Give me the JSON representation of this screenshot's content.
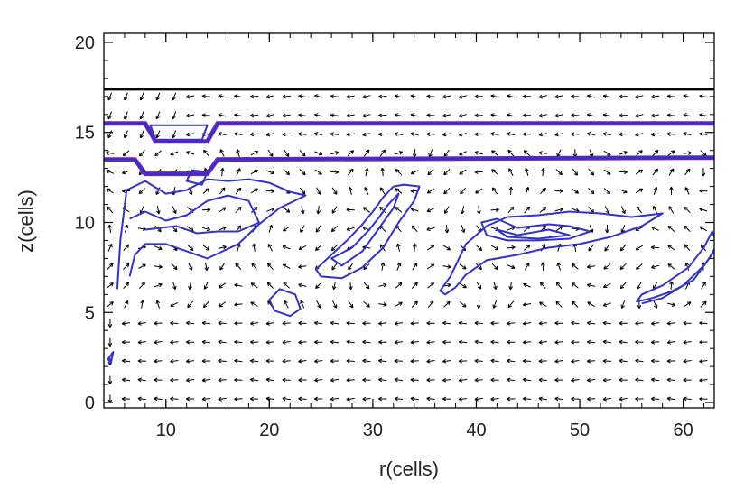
{
  "chart_data": {
    "type": "vector-field-contour",
    "xlabel": "r(cells)",
    "ylabel": "z(cells)",
    "xlim": [
      4,
      63
    ],
    "ylim": [
      -0.3,
      20.5
    ],
    "x_ticks": [
      10,
      20,
      30,
      40,
      50,
      60
    ],
    "y_ticks": [
      0,
      5,
      10,
      15,
      20
    ],
    "colors": {
      "frame": "#000000",
      "arrows": "#000000",
      "contours": "#3333cc",
      "contour_inner": "#7722aa",
      "surface_line": "#000000"
    },
    "surface_line": {
      "y": 17.4
    },
    "layer_lines": [
      {
        "y": [
          15.5,
          15.5,
          14.5,
          14.5,
          15.5,
          15.5
        ],
        "x": [
          4,
          8,
          9,
          14,
          15,
          63
        ]
      },
      {
        "y": [
          13.5,
          13.5,
          12.7,
          12.7,
          13.5,
          13.6
        ],
        "x": [
          4,
          7,
          8,
          14,
          15,
          63
        ]
      }
    ],
    "contours": [
      {
        "closed": false,
        "points": [
          [
            5.3,
            6.3
          ],
          [
            5.6,
            9
          ],
          [
            6.2,
            11.8
          ],
          [
            8,
            12.3
          ],
          [
            10,
            11.6
          ],
          [
            12,
            11.8
          ],
          [
            14,
            12.4
          ],
          [
            16,
            12.3
          ],
          [
            18,
            12.4
          ],
          [
            20,
            12.2
          ],
          [
            22,
            11.7
          ],
          [
            23.5,
            11.5
          ],
          [
            21,
            10.8
          ],
          [
            19,
            9.9
          ],
          [
            17,
            8.8
          ],
          [
            14,
            8.0
          ],
          [
            12,
            8.4
          ],
          [
            10,
            8.8
          ],
          [
            8,
            8.8
          ],
          [
            7,
            8.2
          ],
          [
            6.5,
            7.0
          ]
        ]
      },
      {
        "closed": false,
        "points": [
          [
            6.5,
            10.2
          ],
          [
            8,
            10.6
          ],
          [
            10,
            10.1
          ],
          [
            12,
            10.4
          ],
          [
            14,
            11.2
          ],
          [
            16,
            11.5
          ],
          [
            18,
            11.2
          ],
          [
            19,
            10.0
          ],
          [
            17,
            9.5
          ],
          [
            15,
            9.5
          ],
          [
            13,
            9.4
          ],
          [
            11,
            9.8
          ],
          [
            8,
            9.6
          ]
        ]
      },
      {
        "closed": true,
        "points": [
          [
            20,
            5.7
          ],
          [
            21,
            6.3
          ],
          [
            22.5,
            6.0
          ],
          [
            23,
            5.2
          ],
          [
            22,
            4.8
          ],
          [
            20.5,
            5.1
          ]
        ]
      },
      {
        "closed": true,
        "points": [
          [
            24.5,
            7.4
          ],
          [
            26,
            8.2
          ],
          [
            27.5,
            9.0
          ],
          [
            29,
            9.9
          ],
          [
            30,
            10.6
          ],
          [
            31,
            11.4
          ],
          [
            32,
            12.0
          ],
          [
            33,
            12.1
          ],
          [
            34.5,
            12.0
          ],
          [
            34,
            11.2
          ],
          [
            32.5,
            10.0
          ],
          [
            31,
            8.6
          ],
          [
            29,
            7.5
          ],
          [
            27,
            6.9
          ],
          [
            25,
            7.0
          ]
        ]
      },
      {
        "closed": true,
        "points": [
          [
            26,
            8.0
          ],
          [
            28,
            8.6
          ],
          [
            29.5,
            9.5
          ],
          [
            30.5,
            10.2
          ],
          [
            31.5,
            11.0
          ],
          [
            32.5,
            11.6
          ],
          [
            32,
            10.8
          ],
          [
            30.5,
            9.6
          ],
          [
            29,
            8.4
          ],
          [
            27,
            7.6
          ]
        ]
      },
      {
        "closed": true,
        "points": [
          [
            36.5,
            6.2
          ],
          [
            37.5,
            7.0
          ],
          [
            39,
            8.8
          ],
          [
            41,
            9.8
          ],
          [
            43,
            10.3
          ],
          [
            46,
            10.4
          ],
          [
            49,
            10.6
          ],
          [
            52,
            10.5
          ],
          [
            55,
            10.3
          ],
          [
            58,
            10.5
          ],
          [
            56,
            9.8
          ],
          [
            53,
            9.2
          ],
          [
            50,
            8.8
          ],
          [
            47,
            8.6
          ],
          [
            44,
            8.2
          ],
          [
            41,
            7.9
          ],
          [
            39,
            7.1
          ],
          [
            38,
            6.4
          ],
          [
            37,
            6.0
          ]
        ]
      },
      {
        "closed": true,
        "points": [
          [
            40.5,
            10.0
          ],
          [
            42,
            10.2
          ],
          [
            44,
            9.7
          ],
          [
            47,
            9.9
          ],
          [
            49,
            9.8
          ],
          [
            51,
            9.5
          ],
          [
            49,
            9.1
          ],
          [
            46,
            9.0
          ],
          [
            43,
            9.0
          ],
          [
            41,
            9.3
          ]
        ]
      },
      {
        "closed": true,
        "points": [
          [
            42,
            9.6
          ],
          [
            44,
            9.3
          ],
          [
            47,
            9.6
          ],
          [
            49,
            9.3
          ],
          [
            46,
            9.1
          ],
          [
            43,
            9.2
          ]
        ]
      },
      {
        "closed": true,
        "points": [
          [
            55.5,
            5.6
          ],
          [
            57,
            5.8
          ],
          [
            59,
            6.2
          ],
          [
            61,
            6.8
          ],
          [
            62.5,
            8.0
          ],
          [
            63.3,
            8.8
          ],
          [
            62.8,
            9.5
          ],
          [
            62,
            8.6
          ],
          [
            60.5,
            7.5
          ],
          [
            58,
            6.5
          ],
          [
            56,
            6.0
          ]
        ]
      },
      {
        "closed": false,
        "points": [
          [
            56,
            5.5
          ],
          [
            58,
            5.8
          ],
          [
            60,
            6.5
          ],
          [
            62,
            7.6
          ],
          [
            63,
            8.4
          ]
        ]
      },
      {
        "closed": true,
        "points": [
          [
            4.4,
            2.4
          ],
          [
            4.9,
            2.8
          ],
          [
            4.7,
            2.2
          ]
        ]
      },
      {
        "closed": true,
        "points": [
          [
            12,
            12.3
          ],
          [
            13.5,
            12.1
          ],
          [
            14,
            12.8
          ],
          [
            12.5,
            12.9
          ]
        ]
      },
      {
        "closed": true,
        "points": [
          [
            8.5,
            15.4
          ],
          [
            9,
            14.6
          ],
          [
            13.5,
            14.6
          ],
          [
            14,
            15.4
          ]
        ]
      }
    ]
  }
}
